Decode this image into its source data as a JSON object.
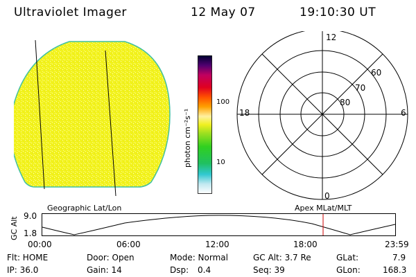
{
  "header": {
    "instrument": "Ultraviolet Imager",
    "date": "12 May 07",
    "time": "19:10:30 UT"
  },
  "colorbar": {
    "unit_label": "photon cm⁻²s⁻¹",
    "ticks": [
      "100",
      "10"
    ]
  },
  "polar_plot": {
    "mlt_labels": {
      "top": "12",
      "left": "18",
      "right": "6",
      "bottom": "0"
    },
    "lat_labels": [
      "60",
      "70",
      "80"
    ]
  },
  "panel_labels": {
    "left": "Geographic Lat/Lon",
    "right": "Apex MLat/MLT"
  },
  "gc_alt_plot": {
    "ylabel": "GC Alt",
    "yticks": [
      "9.0",
      "1.8"
    ],
    "xticks": [
      "00:00",
      "06:00",
      "12:00",
      "18:00",
      "23:59"
    ],
    "marker_color": "#cc0000"
  },
  "info": {
    "row1": {
      "filter": "Flt: HOME",
      "door": "Door: Open",
      "mode": "Mode: Normal",
      "gc_alt": "GC Alt: 3.7 Re",
      "glat_label": "GLat:",
      "glat_value": "7.9"
    },
    "row2": {
      "ip": "IP: 36.0",
      "gain": "Gain: 14",
      "dsp_label": "Dsp:",
      "dsp_value": "0.4",
      "seq": "Seq: 39",
      "glon_label": "GLon:",
      "glon_value": "168.3"
    }
  },
  "colors": {
    "disk_fill": "#f2f21e",
    "disk_edge": "#40c0a0",
    "marker": "#cc0000"
  }
}
